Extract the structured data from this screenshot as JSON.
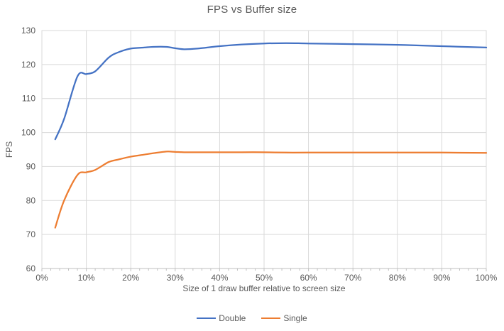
{
  "chart_data": {
    "type": "line",
    "title": "FPS vs Buffer size",
    "xlabel": "Size of 1 draw buffer relative to screen size",
    "ylabel": "FPS",
    "xlim": [
      0,
      100
    ],
    "ylim": [
      60,
      130
    ],
    "x_tick_values": [
      0,
      10,
      20,
      30,
      40,
      50,
      60,
      70,
      80,
      90,
      100
    ],
    "x_tick_labels": [
      "0%",
      "10%",
      "20%",
      "30%",
      "40%",
      "50%",
      "60%",
      "70%",
      "80%",
      "90%",
      "100%"
    ],
    "x_minor_tick_step": 2,
    "y_tick_values": [
      60,
      70,
      80,
      90,
      100,
      110,
      120,
      130
    ],
    "y_tick_labels": [
      "60",
      "70",
      "80",
      "90",
      "100",
      "110",
      "120",
      "130"
    ],
    "grid": true,
    "smooth": true,
    "legend_position": "bottom",
    "x": [
      3,
      5,
      8,
      10,
      12,
      15,
      17,
      20,
      23,
      25,
      28,
      30,
      32,
      35,
      40,
      45,
      50,
      55,
      60,
      70,
      80,
      90,
      100
    ],
    "series": [
      {
        "name": "Double",
        "color": "#4472C4",
        "values": [
          98,
          104,
          116.5,
          117.2,
          118,
          122,
          123.5,
          124.7,
          125,
          125.2,
          125.2,
          124.8,
          124.5,
          124.7,
          125.4,
          125.9,
          126.2,
          126.3,
          126.2,
          126,
          125.8,
          125.4,
          125
        ]
      },
      {
        "name": "Single",
        "color": "#ED7D31",
        "values": [
          72,
          80,
          87.5,
          88.3,
          89,
          91.3,
          92,
          92.9,
          93.5,
          93.9,
          94.4,
          94.3,
          94.2,
          94.2,
          94.2,
          94.2,
          94.2,
          94.1,
          94.1,
          94.1,
          94.1,
          94.1,
          94
        ]
      }
    ]
  },
  "colors": {
    "gridline": "#D9D9D9",
    "axis_line": "#BFBFBF",
    "tick_text": "#595959",
    "title_text": "#595959",
    "background": "#FFFFFF"
  }
}
